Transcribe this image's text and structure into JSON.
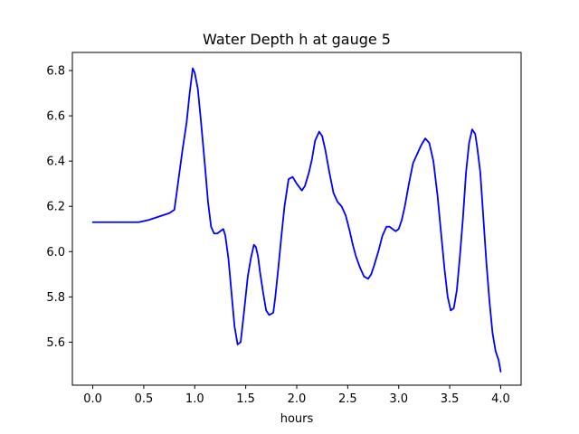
{
  "chart_data": {
    "type": "line",
    "title": "Water Depth h at gauge 5",
    "xlabel": "hours",
    "ylabel": "",
    "xlim": [
      -0.2,
      4.2
    ],
    "ylim": [
      5.41,
      6.88
    ],
    "grid": false,
    "legend": "none",
    "x_ticks": [
      0.0,
      0.5,
      1.0,
      1.5,
      2.0,
      2.5,
      3.0,
      3.5,
      4.0
    ],
    "x_tick_labels": [
      "0.0",
      "0.5",
      "1.0",
      "1.5",
      "2.0",
      "2.5",
      "3.0",
      "3.5",
      "4.0"
    ],
    "y_ticks": [
      5.6,
      5.8,
      6.0,
      6.2,
      6.4,
      6.6,
      6.8
    ],
    "y_tick_labels": [
      "5.6",
      "5.8",
      "6.0",
      "6.2",
      "6.4",
      "6.6",
      "6.8"
    ],
    "series": [
      {
        "color": "#0000ff",
        "x": [
          0.0,
          0.2,
          0.45,
          0.55,
          0.65,
          0.75,
          0.8,
          0.82,
          0.85,
          0.88,
          0.92,
          0.95,
          0.98,
          1.0,
          1.03,
          1.06,
          1.1,
          1.13,
          1.16,
          1.19,
          1.22,
          1.25,
          1.28,
          1.3,
          1.33,
          1.36,
          1.39,
          1.42,
          1.45,
          1.48,
          1.52,
          1.55,
          1.58,
          1.6,
          1.62,
          1.64,
          1.67,
          1.7,
          1.73,
          1.77,
          1.79,
          1.82,
          1.85,
          1.88,
          1.92,
          1.96,
          2.0,
          2.05,
          2.08,
          2.12,
          2.15,
          2.18,
          2.22,
          2.25,
          2.28,
          2.32,
          2.36,
          2.4,
          2.44,
          2.48,
          2.52,
          2.55,
          2.58,
          2.62,
          2.66,
          2.7,
          2.73,
          2.76,
          2.8,
          2.84,
          2.88,
          2.91,
          2.94,
          2.97,
          3.0,
          3.03,
          3.06,
          3.1,
          3.14,
          3.18,
          3.22,
          3.26,
          3.3,
          3.34,
          3.38,
          3.42,
          3.45,
          3.48,
          3.51,
          3.54,
          3.57,
          3.6,
          3.63,
          3.66,
          3.69,
          3.72,
          3.75,
          3.77,
          3.8,
          3.83,
          3.86,
          3.89,
          3.92,
          3.95,
          3.98,
          4.0
        ],
        "values": [
          6.13,
          6.13,
          6.13,
          6.14,
          6.155,
          6.17,
          6.185,
          6.25,
          6.35,
          6.45,
          6.57,
          6.7,
          6.81,
          6.79,
          6.72,
          6.58,
          6.38,
          6.22,
          6.11,
          6.08,
          6.08,
          6.09,
          6.1,
          6.07,
          5.97,
          5.82,
          5.67,
          5.59,
          5.6,
          5.72,
          5.89,
          5.97,
          6.03,
          6.02,
          5.98,
          5.91,
          5.82,
          5.74,
          5.72,
          5.73,
          5.8,
          5.93,
          6.07,
          6.2,
          6.32,
          6.33,
          6.3,
          6.27,
          6.29,
          6.35,
          6.41,
          6.49,
          6.53,
          6.51,
          6.45,
          6.35,
          6.26,
          6.22,
          6.2,
          6.16,
          6.09,
          6.03,
          5.98,
          5.93,
          5.89,
          5.88,
          5.9,
          5.94,
          6.0,
          6.07,
          6.11,
          6.11,
          6.1,
          6.09,
          6.1,
          6.14,
          6.2,
          6.3,
          6.39,
          6.43,
          6.47,
          6.5,
          6.48,
          6.4,
          6.25,
          6.06,
          5.92,
          5.8,
          5.74,
          5.75,
          5.83,
          5.98,
          6.15,
          6.35,
          6.48,
          6.54,
          6.52,
          6.46,
          6.35,
          6.15,
          5.95,
          5.78,
          5.64,
          5.56,
          5.52,
          5.47
        ]
      }
    ]
  }
}
